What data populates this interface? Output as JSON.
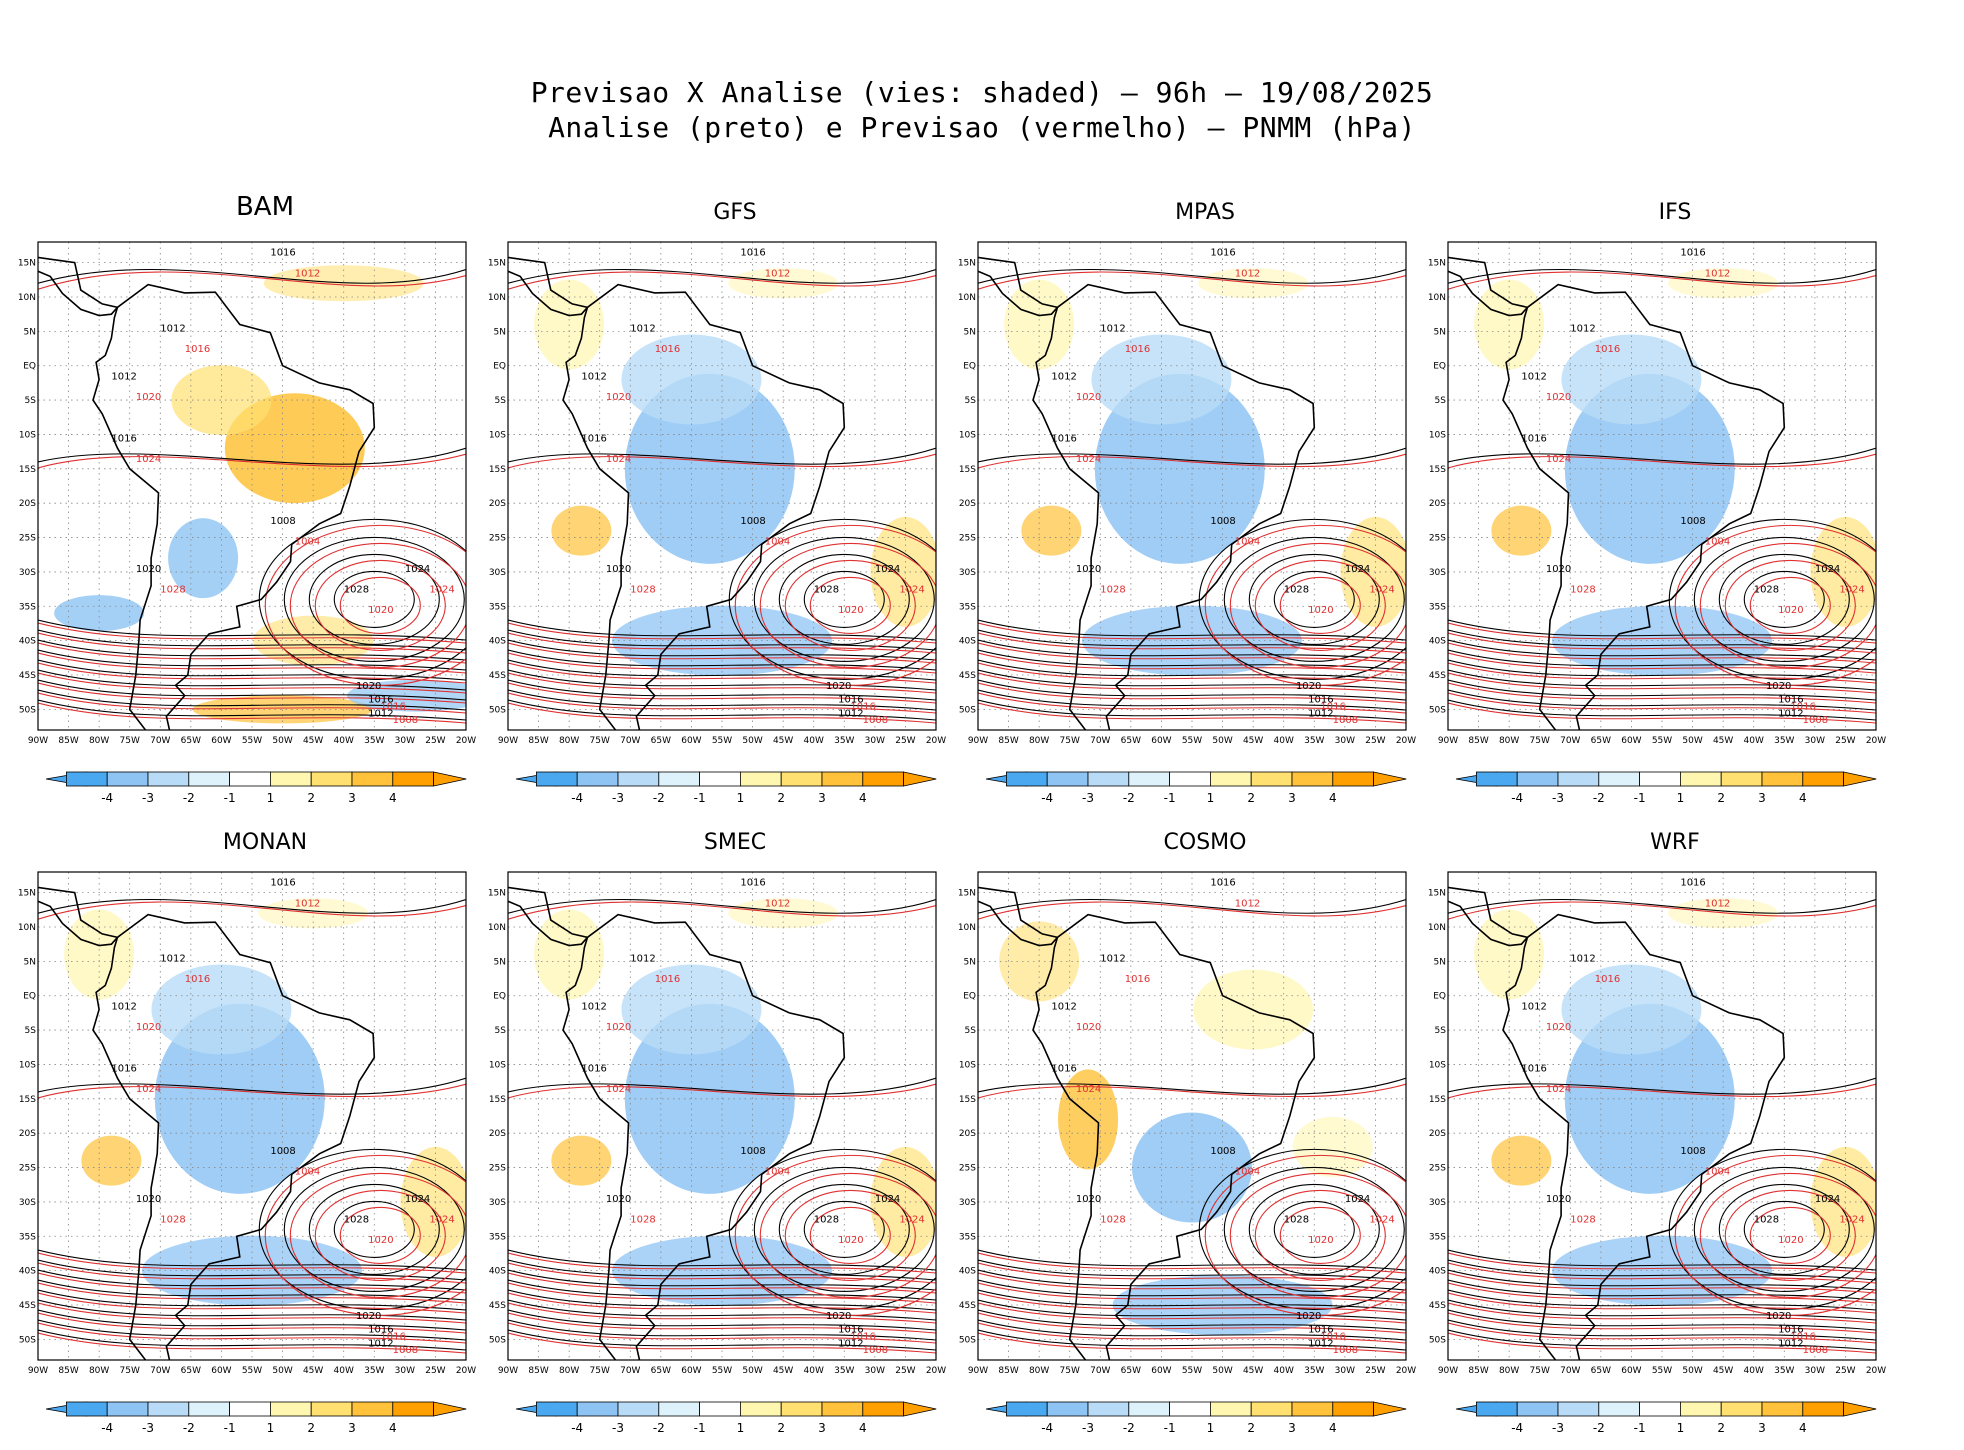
{
  "title": {
    "line1": "Previsao X Analise (vies: shaded) — 96h — 19/08/2025",
    "line2": "Analise (preto) e Previsao (vermelho) — PNMM (hPa)"
  },
  "panels": [
    {
      "name": "BAM",
      "bias": "warm"
    },
    {
      "name": "GFS",
      "bias": "cool"
    },
    {
      "name": "MPAS",
      "bias": "cool"
    },
    {
      "name": "IFS",
      "bias": "cool"
    },
    {
      "name": "MONAN",
      "bias": "cool"
    },
    {
      "name": "SMEC",
      "bias": "cool"
    },
    {
      "name": "COSMO",
      "bias": "mixed"
    },
    {
      "name": "WRF",
      "bias": "cool"
    }
  ],
  "axes": {
    "lon_labels": [
      "90W",
      "85W",
      "80W",
      "75W",
      "70W",
      "65W",
      "60W",
      "55W",
      "50W",
      "45W",
      "40W",
      "35W",
      "30W",
      "25W",
      "20W"
    ],
    "lat_labels": [
      "15N",
      "10N",
      "5N",
      "EQ",
      "5S",
      "10S",
      "15S",
      "20S",
      "25S",
      "30S",
      "35S",
      "40S",
      "45S",
      "50S"
    ]
  },
  "contour_labels": {
    "analysis": [
      "1016",
      "1012",
      "1012",
      "1016",
      "1020",
      "1024",
      "1028",
      "1020",
      "1016",
      "1012",
      "1008"
    ],
    "forecast": [
      "1012",
      "1016",
      "1020",
      "1024",
      "1028",
      "1024",
      "1020",
      "1016",
      "1008",
      "1012",
      "1004"
    ]
  },
  "colorbar": {
    "labels": [
      "-4",
      "-3",
      "-2",
      "-1",
      "1",
      "2",
      "3",
      "4"
    ],
    "colors": [
      "#4aa8f0",
      "#8ec4f4",
      "#b8dcf8",
      "#def2fb",
      "#ffffff",
      "#fff6b0",
      "#ffe070",
      "#ffc23a",
      "#ffa000"
    ]
  },
  "colors": {
    "analysis_contour": "#000000",
    "forecast_contour": "#e03030",
    "bias_negative": "#6ab4f0",
    "bias_positive": "#ffc040",
    "grid": "#888888"
  }
}
